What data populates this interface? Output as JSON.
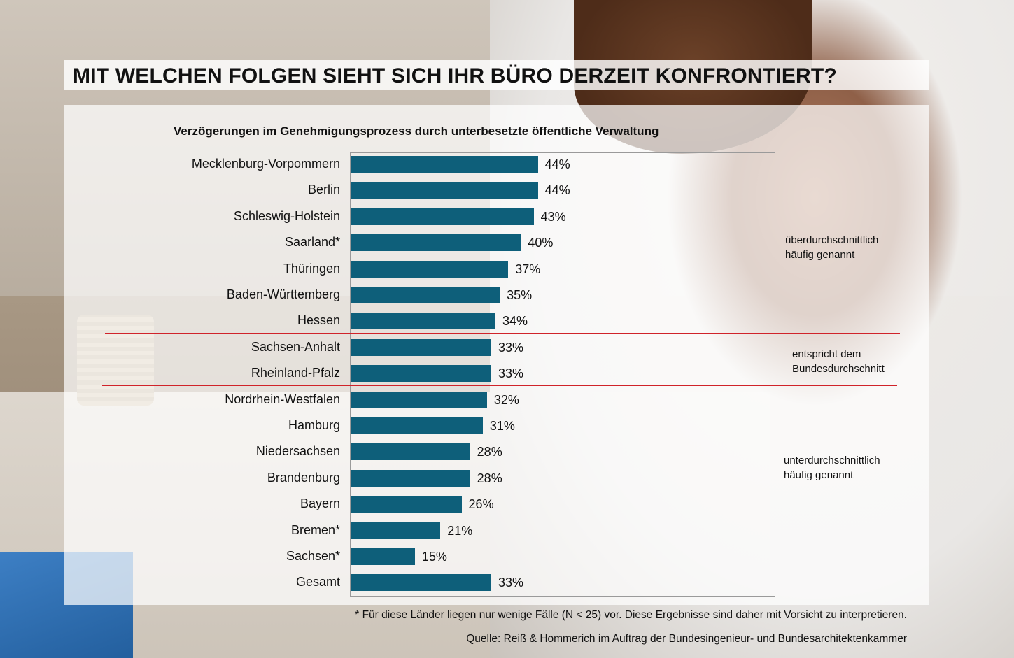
{
  "title": "MIT WELCHEN FOLGEN SIEHT SICH IHR BÜRO DERZEIT KONFRONTIERT?",
  "chart_data": {
    "type": "bar",
    "orientation": "horizontal",
    "title": "Verzögerungen im Genehmigungsprozess durch unterbesetzte öffentliche Verwaltung",
    "categories": [
      "Mecklenburg-Vorpommern",
      "Berlin",
      "Schleswig-Holstein",
      "Saarland*",
      "Thüringen",
      "Baden-Württemberg",
      "Hessen",
      "Sachsen-Anhalt",
      "Rheinland-Pfalz",
      "Nordrhein-Westfalen",
      "Hamburg",
      "Niedersachsen",
      "Brandenburg",
      "Bayern",
      "Bremen*",
      "Sachsen*",
      "Gesamt"
    ],
    "values": [
      44,
      44,
      43,
      40,
      37,
      35,
      34,
      33,
      33,
      32,
      31,
      28,
      28,
      26,
      21,
      15,
      33
    ],
    "value_labels": [
      "44%",
      "44%",
      "43%",
      "40%",
      "37%",
      "35%",
      "34%",
      "33%",
      "33%",
      "32%",
      "31%",
      "28%",
      "28%",
      "26%",
      "21%",
      "15%",
      "33%"
    ],
    "unit": "%",
    "bar_color": "#0e5f7a",
    "separator_color": "#d0232a",
    "separators_after_index": [
      6,
      8,
      15
    ],
    "groups": [
      {
        "label_lines": [
          "überdurchschnittlich",
          "häufig genannt"
        ],
        "range": [
          0,
          6
        ]
      },
      {
        "label_lines": [
          "entspricht dem",
          "Bundesdurchschnitt"
        ],
        "range": [
          7,
          8
        ]
      },
      {
        "label_lines": [
          "unterdurchschnittlich",
          "häufig genannt"
        ],
        "range": [
          9,
          15
        ]
      }
    ]
  },
  "footnote": "* Für diese Länder liegen nur wenige Fälle (N < 25) vor. Diese Ergebnisse sind daher mit Vorsicht zu interpretieren.",
  "source": "Quelle: Reiß & Hommerich im Auftrag der Bundesingenieur- und Bundesarchitektenkammer"
}
